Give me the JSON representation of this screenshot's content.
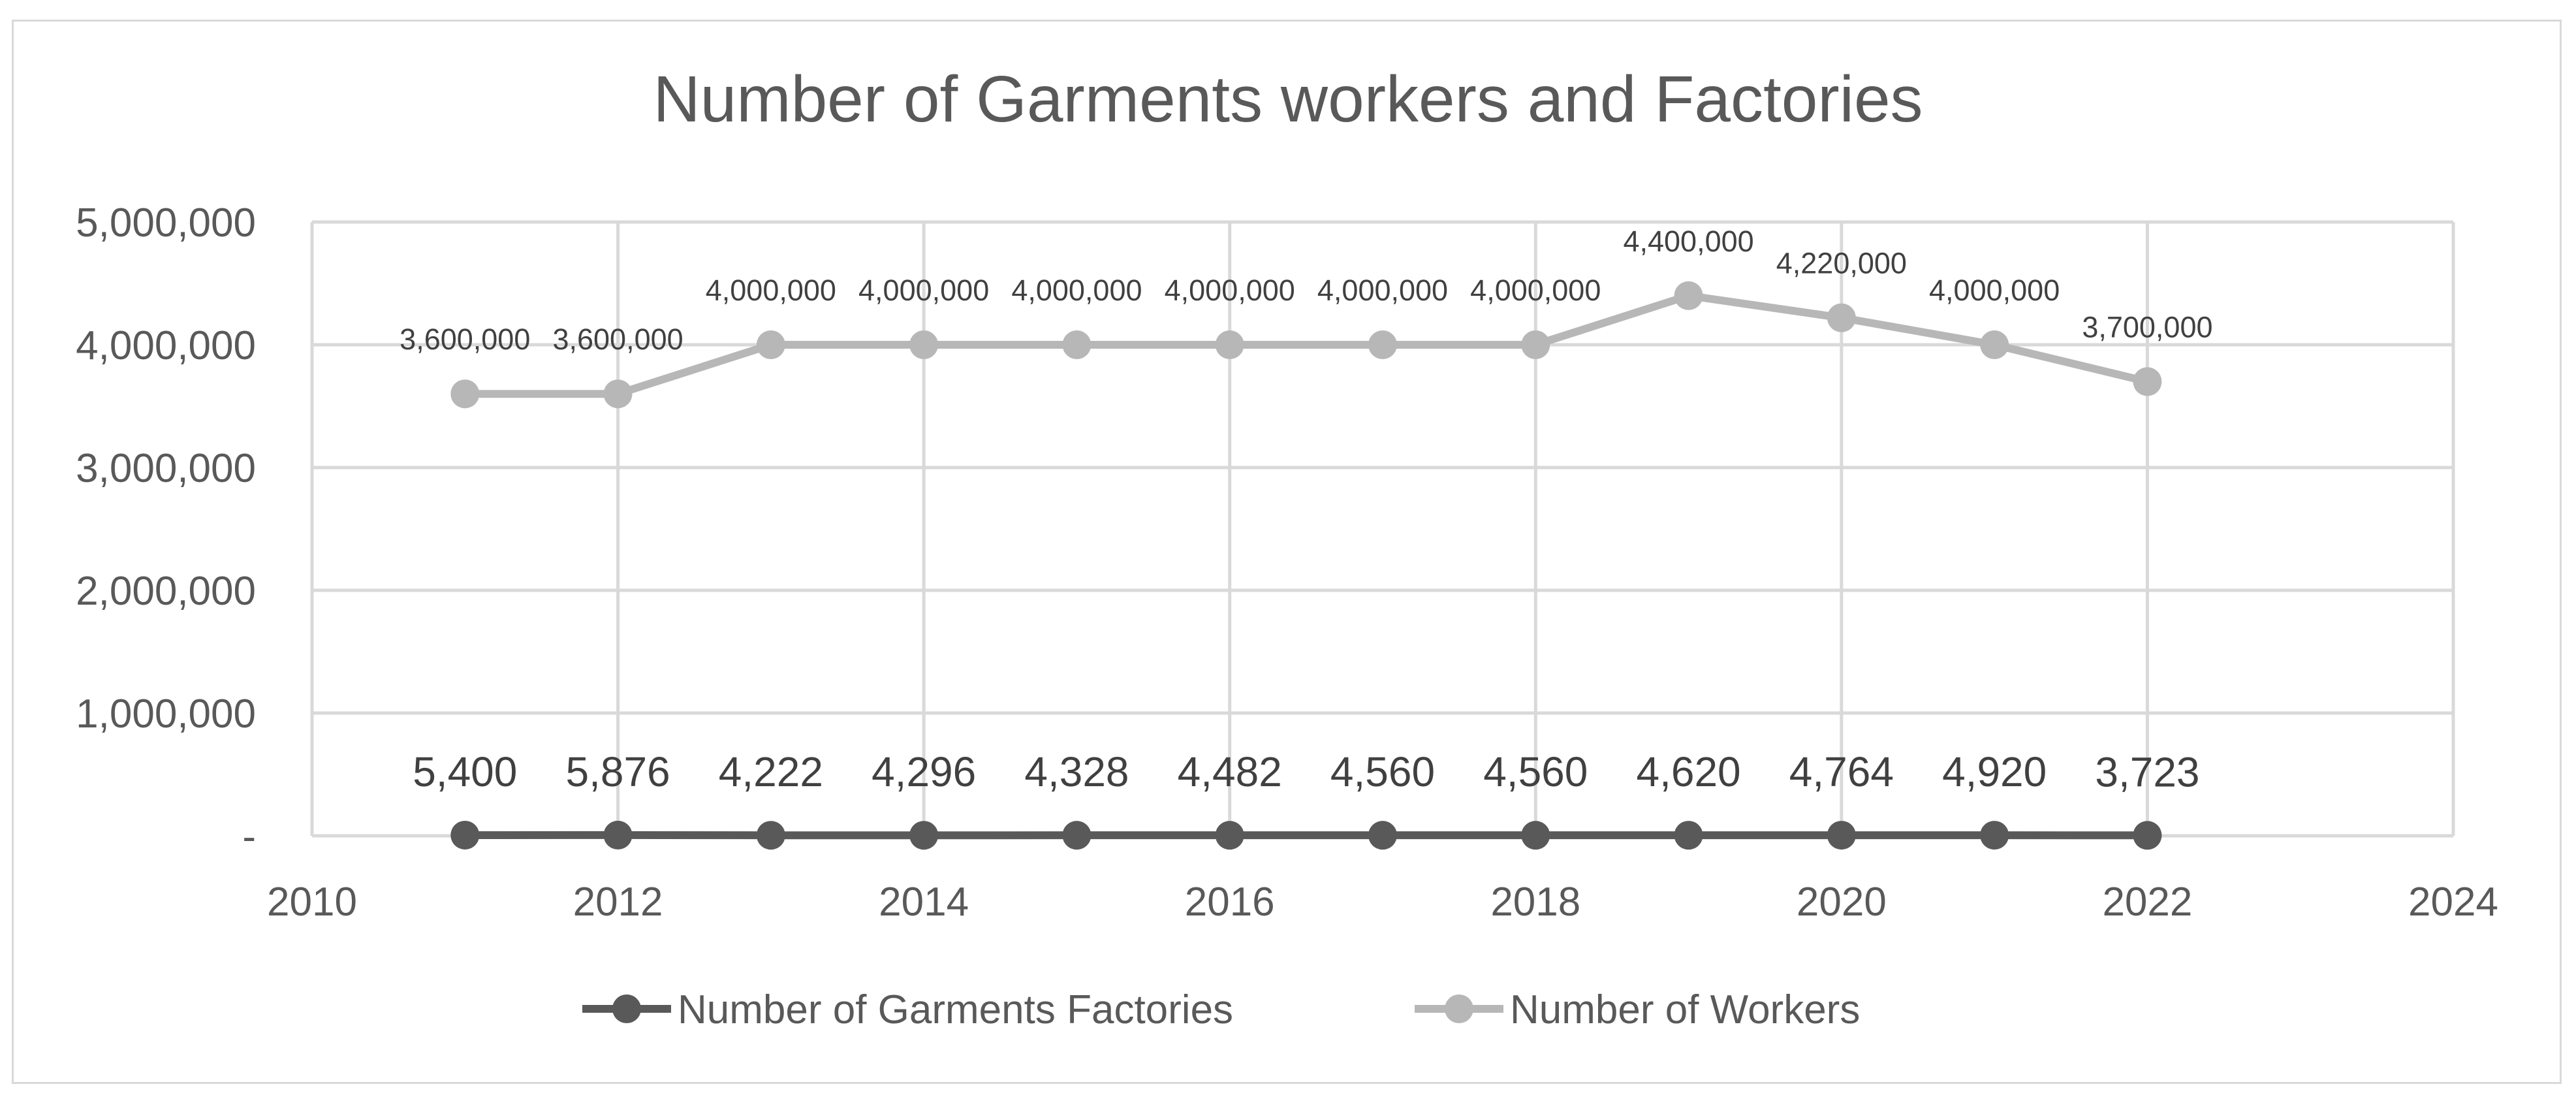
{
  "chart_data": {
    "type": "line",
    "title": "Number of Garments workers and Factories",
    "xlabel": "",
    "ylabel": "",
    "x_ticks": [
      "2010",
      "2012",
      "2014",
      "2016",
      "2018",
      "2020",
      "2022",
      "2024"
    ],
    "xlim": [
      2010,
      2024
    ],
    "y_ticks": [
      "-",
      "1,000,000",
      "2,000,000",
      "3,000,000",
      "4,000,000",
      "5,000,000"
    ],
    "ylim": [
      0,
      5000000
    ],
    "grid": true,
    "legend_position": "bottom",
    "series": [
      {
        "name": "Number of Garments Factories",
        "color": "#595959",
        "x": [
          2011,
          2012,
          2013,
          2014,
          2015,
          2016,
          2017,
          2018,
          2019,
          2020,
          2021,
          2022
        ],
        "values": [
          5400,
          5876,
          4222,
          4296,
          4328,
          4482,
          4560,
          4560,
          4620,
          4764,
          4920,
          3723
        ],
        "labels": [
          "5,400",
          "5,876",
          "4,222",
          "4,296",
          "4,328",
          "4,482",
          "4,560",
          "4,560",
          "4,620",
          "4,764",
          "4,920",
          "3,723"
        ]
      },
      {
        "name": "Number of Workers",
        "color": "#b7b7b7",
        "x": [
          2011,
          2012,
          2013,
          2014,
          2015,
          2016,
          2017,
          2018,
          2019,
          2020,
          2021,
          2022
        ],
        "values": [
          3600000,
          3600000,
          4000000,
          4000000,
          4000000,
          4000000,
          4000000,
          4000000,
          4400000,
          4220000,
          4000000,
          3700000
        ],
        "labels": [
          "3,600,000",
          "3,600,000",
          "4,000,000",
          "4,000,000",
          "4,000,000",
          "4,000,000",
          "4,000,000",
          "4,000,000",
          "4,400,000",
          "4,220,000",
          "4,000,000",
          "3,700,000"
        ]
      }
    ]
  }
}
